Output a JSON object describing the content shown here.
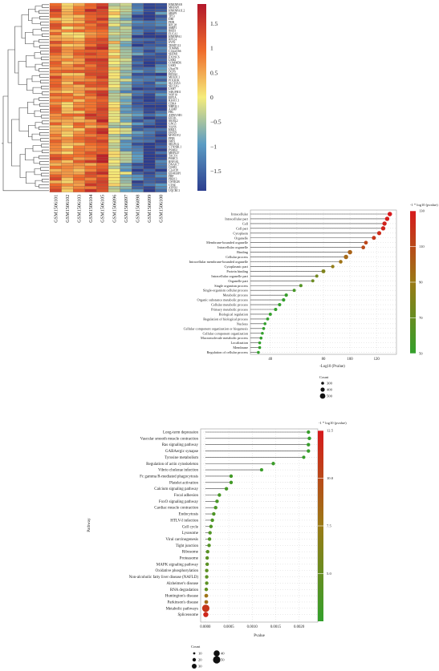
{
  "chart_data": [
    {
      "type": "heatmap",
      "title": "",
      "genes": [
        "HNRNPAB",
        "MRFAP1",
        "HNRNPA1L2",
        "SRSF9",
        "TP53",
        "DBI",
        "PHB",
        "RPL28",
        "SSBP1",
        "BRD3",
        "FUCA1",
        "HNRNPA1",
        "RPS24",
        "SYF2",
        "TRMT112",
        "TOMM6",
        "C14orf166",
        "SHFM1",
        "EXOSC6",
        "LSM2",
        "COMMD6",
        "LSM3",
        "C9orf78",
        "DCPS",
        "EIF2S2",
        "MESDC1",
        "POLR3K",
        "SLC15A3",
        "SEC61G",
        "LSM7",
        "NDUFB11",
        "NOP10",
        "EIF5A",
        "R3HCC1",
        "CDK4",
        "NHP2L1",
        "AAMP",
        "FBL",
        "ATP6V0D1",
        "EIF3K",
        "SS18L2",
        "GNG5",
        "NANS",
        "HM13",
        "ERP29",
        "MYEOV2",
        "PPIB",
        "IMP3",
        "SELPLG",
        "CTNNBL1",
        "PSMB2",
        "MRPL47",
        "TACO1",
        "PSMC3",
        "RNF181",
        "DNAJC7",
        "CISD3",
        "C2orf18",
        "EIF4EBP1",
        "FBP",
        "PRR13",
        "CSNK2B",
        "CTSZ",
        "ATP5H",
        "UQCRC1"
      ],
      "samples": [
        "GSM1506101",
        "GSM1506102",
        "GSM1506103",
        "GSM1506104",
        "GSM1506105",
        "GSM1506096",
        "GSM1506097",
        "GSM1506098",
        "GSM1506099",
        "GSM1506100"
      ],
      "colorbar_ticks": [
        "1.5",
        "1",
        "0.5",
        "0",
        "−0.5",
        "−1",
        "−1.5"
      ],
      "colorbar_range": [
        -1.9,
        1.9
      ],
      "colors": {
        "high": "#b2182b",
        "mid": "#f5ec7a",
        "low": "#2c3e8f"
      },
      "group_pattern": [
        0.9,
        0.5,
        0.7,
        1.1,
        1.4,
        -0.1,
        -0.6,
        -1.4,
        -1.7,
        -1.5
      ]
    },
    {
      "type": "scatter",
      "subtype": "lollipop",
      "categories": [
        "Intracellular",
        "Intracellular part",
        "Cell",
        "Cell part",
        "Cytoplasm",
        "Organelle",
        "Membrane-bounded organelle",
        "Intracellular organelle",
        "Binding",
        "Cellular process",
        "Intracellular membrane-bounded organelle",
        "Cytoplasmic part",
        "Protein binding",
        "Intracellular organelle part",
        "Organelle part",
        "Single organism process",
        "Single-organism cellular process",
        "Metabolic process",
        "Organic substance metabolic process",
        "Cellular metabolic process",
        "Primary metabolic process",
        "Biological regulation",
        "Regulation of biological process",
        "Nucleus",
        "Cellular component organization or biogenesis",
        "Cellular component organization",
        "Macromolecule metabolic process",
        "Localization",
        "Membrane",
        "Regulation of cellular process"
      ],
      "x": [
        130,
        128,
        126,
        125,
        122,
        118,
        112,
        110,
        100,
        97,
        93,
        87,
        80,
        75,
        72,
        63,
        58,
        52,
        50,
        47,
        44,
        40,
        38,
        36,
        35,
        34,
        33,
        32,
        32,
        31
      ],
      "sizes": [
        420,
        415,
        410,
        410,
        400,
        390,
        370,
        370,
        420,
        420,
        360,
        340,
        380,
        320,
        320,
        330,
        320,
        340,
        340,
        335,
        330,
        320,
        310,
        300,
        300,
        300,
        300,
        300,
        300,
        300
      ],
      "xlabel": "-Log10 (Pvalue)",
      "xticks": [
        "40",
        "80",
        "100",
        "120"
      ],
      "xlim": [
        25,
        135
      ],
      "colorbar_title": "-1 * log10 (pvalue)",
      "colorbar_ticks": [
        "130",
        "110",
        "90",
        "70",
        "50"
      ],
      "colorbar_range": [
        50,
        130
      ],
      "size_legend_title": "Count",
      "size_legend": [
        "300",
        "400",
        "500"
      ],
      "colors": {
        "high": "#d7191c",
        "mid": "#8c8c1a",
        "low": "#33a02c"
      }
    },
    {
      "type": "scatter",
      "subtype": "lollipop",
      "categories": [
        "Long-term depression",
        "Vascular smooth muscle contraction",
        "Ras signaling pathway",
        "GABAergic synapse",
        "Tyrosine metabolism",
        "Regulation of actin cytoskeleton",
        "Vibrio cholerae infection",
        "Fc gamma R-mediated phagocytosis",
        "Platelet activation",
        "Calcium signaling pathway",
        "Focal adhesion",
        "FoxO signaling pathway",
        "Cardiac muscle contraction",
        "Endocytosis",
        "HTLV-I infection",
        "Cell cycle",
        "Lysosome",
        "Viral carcinogenesis",
        "Tight junction",
        "Ribosome",
        "Proteasome",
        "MAPK signaling pathway",
        "Oxidative phosphorylation",
        "Non-alcoholic fatty liver disease (NAFLD)",
        "Alzheimer's disease",
        "RNA degradation",
        "Huntington's disease",
        "Parkinson's disease",
        "Metabolic pathways",
        "Spliceosome"
      ],
      "x": [
        0.0022,
        0.00222,
        0.0022,
        0.0022,
        0.0021,
        0.00145,
        0.0012,
        0.00055,
        0.00055,
        0.00045,
        0.0003,
        0.00025,
        0.00022,
        0.00018,
        0.00015,
        0.00012,
        0.0001,
        9e-05,
        8e-05,
        5e-05,
        4e-05,
        4e-05,
        3e-05,
        3e-05,
        3e-05,
        2e-05,
        2e-05,
        2e-05,
        1e-05,
        1e-05
      ],
      "color_values": [
        2.7,
        2.6,
        2.7,
        2.7,
        2.7,
        2.9,
        2.9,
        3.3,
        3.3,
        3.4,
        3.5,
        3.6,
        3.7,
        3.8,
        3.8,
        3.9,
        4.0,
        4.0,
        4.1,
        4.3,
        4.4,
        4.4,
        4.5,
        4.5,
        4.5,
        4.7,
        7.8,
        8.2,
        11.0,
        11.8
      ],
      "sizes": [
        20,
        20,
        20,
        20,
        18,
        20,
        18,
        20,
        20,
        20,
        20,
        20,
        20,
        20,
        20,
        20,
        20,
        20,
        20,
        20,
        20,
        20,
        20,
        20,
        20,
        20,
        22,
        22,
        50,
        32
      ],
      "xlabel": "Pvalue",
      "ylabel": "Pathway",
      "xticks": [
        "0.0000",
        "0.0005",
        "0.0010",
        "0.0015",
        "0.0020"
      ],
      "xlim": [
        -0.0001,
        0.0024
      ],
      "colorbar_title": "-1 * log10 (pvalue)",
      "colorbar_ticks": [
        "12.5",
        "10.0",
        "7.5",
        "5.0"
      ],
      "colorbar_range": [
        2.5,
        12.5
      ],
      "size_legend_title": "Count",
      "size_legend": [
        "10",
        "20",
        "30",
        "40",
        "50"
      ],
      "colors": {
        "high": "#d7191c",
        "mid": "#8c8c1a",
        "low": "#33a02c"
      }
    }
  ]
}
